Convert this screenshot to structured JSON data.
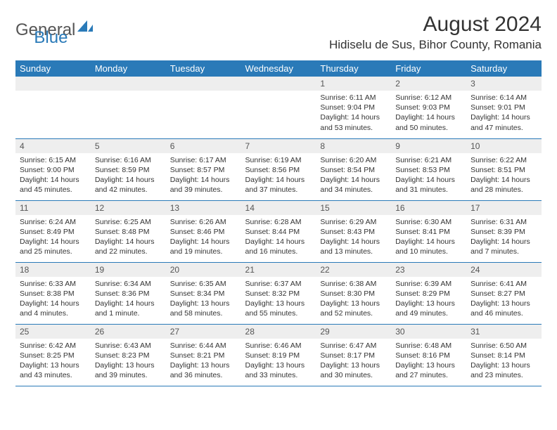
{
  "brand": {
    "general": "General",
    "blue": "Blue"
  },
  "title": "August 2024",
  "location": "Hidiselu de Sus, Bihor County, Romania",
  "day_names": [
    "Sunday",
    "Monday",
    "Tuesday",
    "Wednesday",
    "Thursday",
    "Friday",
    "Saturday"
  ],
  "colors": {
    "header_bg": "#2a7ab8",
    "header_fg": "#ffffff",
    "daynum_bg": "#eeeeee",
    "border": "#2a7ab8",
    "text": "#333333"
  },
  "weeks": [
    [
      null,
      null,
      null,
      null,
      {
        "n": "1",
        "sr": "6:11 AM",
        "ss": "9:04 PM",
        "dl": "14 hours and 53 minutes."
      },
      {
        "n": "2",
        "sr": "6:12 AM",
        "ss": "9:03 PM",
        "dl": "14 hours and 50 minutes."
      },
      {
        "n": "3",
        "sr": "6:14 AM",
        "ss": "9:01 PM",
        "dl": "14 hours and 47 minutes."
      }
    ],
    [
      {
        "n": "4",
        "sr": "6:15 AM",
        "ss": "9:00 PM",
        "dl": "14 hours and 45 minutes."
      },
      {
        "n": "5",
        "sr": "6:16 AM",
        "ss": "8:59 PM",
        "dl": "14 hours and 42 minutes."
      },
      {
        "n": "6",
        "sr": "6:17 AM",
        "ss": "8:57 PM",
        "dl": "14 hours and 39 minutes."
      },
      {
        "n": "7",
        "sr": "6:19 AM",
        "ss": "8:56 PM",
        "dl": "14 hours and 37 minutes."
      },
      {
        "n": "8",
        "sr": "6:20 AM",
        "ss": "8:54 PM",
        "dl": "14 hours and 34 minutes."
      },
      {
        "n": "9",
        "sr": "6:21 AM",
        "ss": "8:53 PM",
        "dl": "14 hours and 31 minutes."
      },
      {
        "n": "10",
        "sr": "6:22 AM",
        "ss": "8:51 PM",
        "dl": "14 hours and 28 minutes."
      }
    ],
    [
      {
        "n": "11",
        "sr": "6:24 AM",
        "ss": "8:49 PM",
        "dl": "14 hours and 25 minutes."
      },
      {
        "n": "12",
        "sr": "6:25 AM",
        "ss": "8:48 PM",
        "dl": "14 hours and 22 minutes."
      },
      {
        "n": "13",
        "sr": "6:26 AM",
        "ss": "8:46 PM",
        "dl": "14 hours and 19 minutes."
      },
      {
        "n": "14",
        "sr": "6:28 AM",
        "ss": "8:44 PM",
        "dl": "14 hours and 16 minutes."
      },
      {
        "n": "15",
        "sr": "6:29 AM",
        "ss": "8:43 PM",
        "dl": "14 hours and 13 minutes."
      },
      {
        "n": "16",
        "sr": "6:30 AM",
        "ss": "8:41 PM",
        "dl": "14 hours and 10 minutes."
      },
      {
        "n": "17",
        "sr": "6:31 AM",
        "ss": "8:39 PM",
        "dl": "14 hours and 7 minutes."
      }
    ],
    [
      {
        "n": "18",
        "sr": "6:33 AM",
        "ss": "8:38 PM",
        "dl": "14 hours and 4 minutes."
      },
      {
        "n": "19",
        "sr": "6:34 AM",
        "ss": "8:36 PM",
        "dl": "14 hours and 1 minute."
      },
      {
        "n": "20",
        "sr": "6:35 AM",
        "ss": "8:34 PM",
        "dl": "13 hours and 58 minutes."
      },
      {
        "n": "21",
        "sr": "6:37 AM",
        "ss": "8:32 PM",
        "dl": "13 hours and 55 minutes."
      },
      {
        "n": "22",
        "sr": "6:38 AM",
        "ss": "8:30 PM",
        "dl": "13 hours and 52 minutes."
      },
      {
        "n": "23",
        "sr": "6:39 AM",
        "ss": "8:29 PM",
        "dl": "13 hours and 49 minutes."
      },
      {
        "n": "24",
        "sr": "6:41 AM",
        "ss": "8:27 PM",
        "dl": "13 hours and 46 minutes."
      }
    ],
    [
      {
        "n": "25",
        "sr": "6:42 AM",
        "ss": "8:25 PM",
        "dl": "13 hours and 43 minutes."
      },
      {
        "n": "26",
        "sr": "6:43 AM",
        "ss": "8:23 PM",
        "dl": "13 hours and 39 minutes."
      },
      {
        "n": "27",
        "sr": "6:44 AM",
        "ss": "8:21 PM",
        "dl": "13 hours and 36 minutes."
      },
      {
        "n": "28",
        "sr": "6:46 AM",
        "ss": "8:19 PM",
        "dl": "13 hours and 33 minutes."
      },
      {
        "n": "29",
        "sr": "6:47 AM",
        "ss": "8:17 PM",
        "dl": "13 hours and 30 minutes."
      },
      {
        "n": "30",
        "sr": "6:48 AM",
        "ss": "8:16 PM",
        "dl": "13 hours and 27 minutes."
      },
      {
        "n": "31",
        "sr": "6:50 AM",
        "ss": "8:14 PM",
        "dl": "13 hours and 23 minutes."
      }
    ]
  ],
  "labels": {
    "sunrise": "Sunrise: ",
    "sunset": "Sunset: ",
    "daylight": "Daylight: "
  }
}
